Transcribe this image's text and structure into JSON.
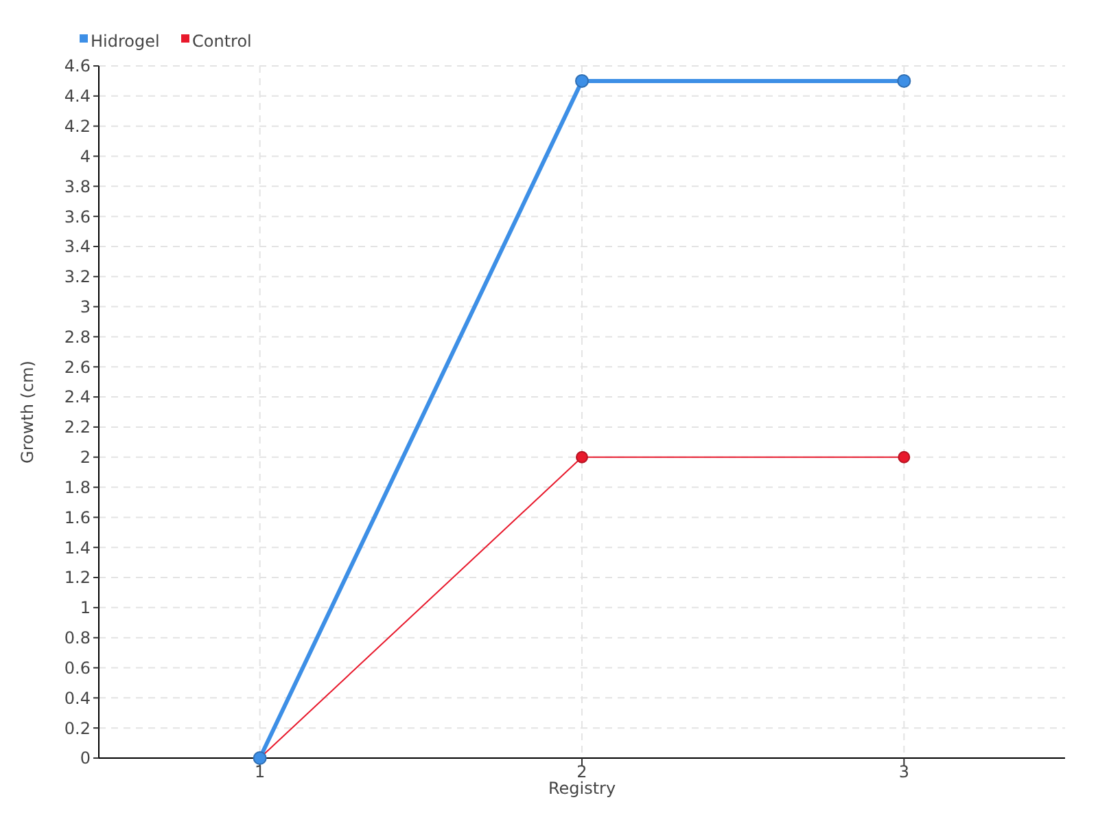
{
  "chart_data": {
    "type": "line",
    "xlabel": "Registry",
    "ylabel": "Growth (cm)",
    "categories": [
      "1",
      "2",
      "3"
    ],
    "series": [
      {
        "name": "Hidrogel",
        "color": "#3d8fe6",
        "values": [
          0,
          4.5,
          4.5
        ]
      },
      {
        "name": "Control",
        "color": "#e8192c",
        "values": [
          0,
          2,
          2
        ]
      }
    ],
    "ylim": [
      0,
      4.6
    ],
    "yticks": [
      0,
      0.2,
      0.4,
      0.6,
      0.8,
      1,
      1.2,
      1.4,
      1.6,
      1.8,
      2,
      2.2,
      2.4,
      2.6,
      2.8,
      3,
      3.2,
      3.4,
      3.6,
      3.8,
      4,
      4.2,
      4.4,
      4.6
    ],
    "grid": true,
    "legend": "top left",
    "marker": "circle"
  }
}
